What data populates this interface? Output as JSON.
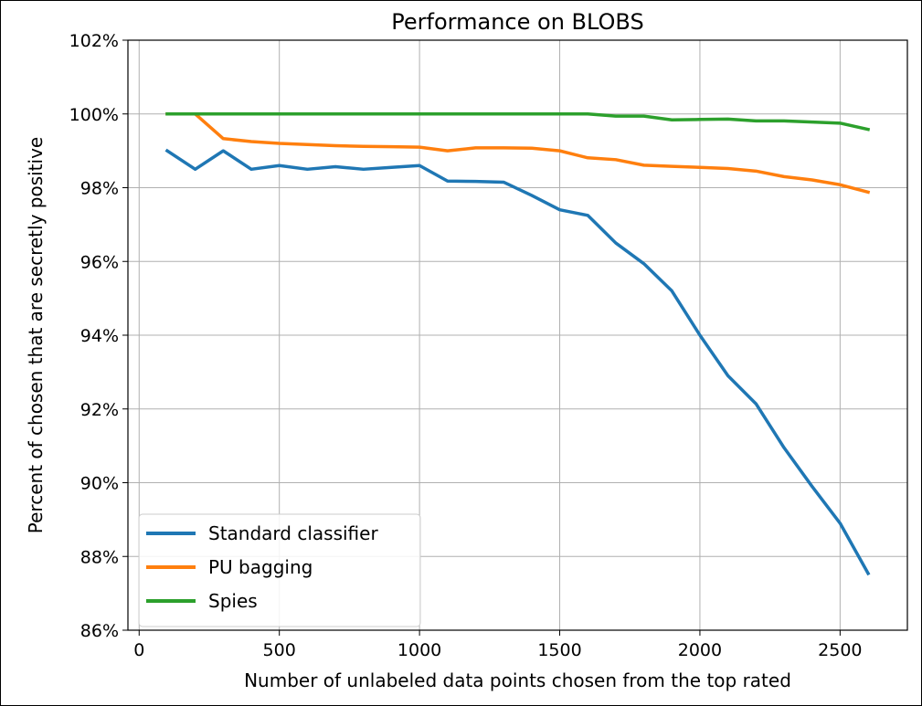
{
  "chart_data": {
    "type": "line",
    "title": "Performance on BLOBS",
    "xlabel": "Number of unlabeled data points chosen from the top rated",
    "ylabel": "Percent of chosen that are secretly positive",
    "xlim": [
      -40,
      2740
    ],
    "ylim": [
      86,
      102
    ],
    "xticks": [
      0,
      500,
      1000,
      1500,
      2000,
      2500
    ],
    "yticks": [
      86,
      88,
      90,
      92,
      94,
      96,
      98,
      100,
      102
    ],
    "ytick_labels": [
      "86%",
      "88%",
      "90%",
      "92%",
      "94%",
      "96%",
      "98%",
      "100%",
      "102%"
    ],
    "grid": true,
    "legend_position": "lower-left",
    "x": [
      100,
      200,
      300,
      400,
      500,
      600,
      700,
      800,
      900,
      1000,
      1100,
      1200,
      1300,
      1400,
      1500,
      1600,
      1700,
      1800,
      1900,
      2000,
      2100,
      2200,
      2300,
      2400,
      2500,
      2600
    ],
    "series": [
      {
        "name": "Standard classifier",
        "color": "#1f77b4",
        "values": [
          99.0,
          98.5,
          99.0,
          98.5,
          98.6,
          98.5,
          98.57,
          98.5,
          98.55,
          98.6,
          98.18,
          98.17,
          98.15,
          97.79,
          97.4,
          97.25,
          96.5,
          95.94,
          95.2,
          94.0,
          92.9,
          92.14,
          90.95,
          89.9,
          88.9,
          87.54
        ]
      },
      {
        "name": "PU bagging",
        "color": "#ff7f0e",
        "values": [
          100.0,
          100.0,
          99.33,
          99.25,
          99.2,
          99.17,
          99.14,
          99.12,
          99.11,
          99.1,
          99.0,
          99.08,
          99.08,
          99.07,
          99.0,
          98.81,
          98.76,
          98.61,
          98.58,
          98.55,
          98.52,
          98.45,
          98.3,
          98.21,
          98.08,
          97.88
        ]
      },
      {
        "name": "Spies",
        "color": "#2ca02c",
        "values": [
          100.0,
          100.0,
          100.0,
          100.0,
          100.0,
          100.0,
          100.0,
          100.0,
          100.0,
          100.0,
          100.0,
          100.0,
          100.0,
          100.0,
          100.0,
          100.0,
          99.94,
          99.94,
          99.84,
          99.85,
          99.86,
          99.81,
          99.81,
          99.78,
          99.75,
          99.58
        ]
      }
    ]
  }
}
